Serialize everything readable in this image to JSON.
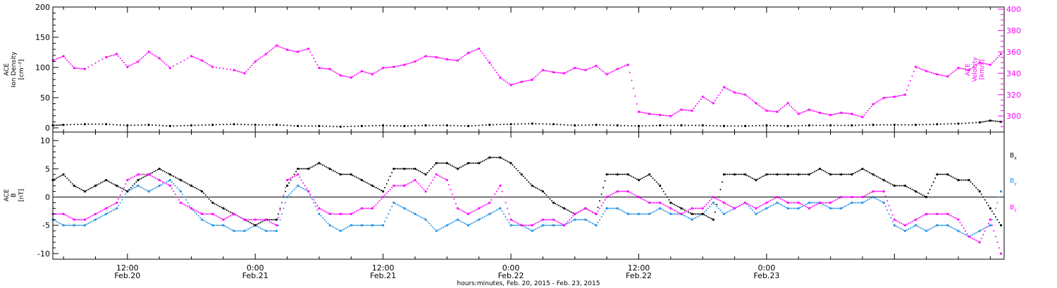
{
  "colors": {
    "black": "#000000",
    "magenta": "#ff00ff",
    "blue": "#1e90e6",
    "axis": "#000000"
  },
  "chart_data": [
    {
      "type": "scatter",
      "panel": "top",
      "left_axis": {
        "label_lines": [
          "ACE",
          "Ion Density",
          "[cm⁻³]"
        ],
        "ylim": [
          -7,
          200
        ],
        "ticks": [
          0,
          50,
          100,
          150,
          200
        ],
        "color": "#000000"
      },
      "right_axis": {
        "label_lines": [
          "ACE",
          "Velocity",
          "[km/s]"
        ],
        "ylim": [
          285,
          402
        ],
        "ticks": [
          300,
          320,
          340,
          360,
          380,
          400
        ],
        "color": "#ff00ff"
      },
      "x_unit": "hours since 2015-02-20 00:00",
      "xlim": [
        5,
        94.3
      ],
      "series": [
        {
          "name": "",
          "axis": "left",
          "color": "#000000",
          "x": [
            5,
            6,
            8,
            10,
            12,
            14,
            16,
            18,
            20,
            22,
            24,
            26,
            28,
            30,
            32,
            34,
            36,
            38,
            40,
            42,
            44,
            46,
            48,
            50,
            52,
            54,
            56,
            58,
            60,
            62,
            64,
            66,
            68,
            70,
            72,
            74,
            76,
            78,
            80,
            82,
            84,
            86,
            88,
            90,
            92,
            93,
            94
          ],
          "y": [
            4,
            5,
            6,
            6,
            4,
            5,
            3,
            4,
            5,
            6,
            5,
            5,
            3,
            3,
            2,
            3,
            4,
            3,
            4,
            4,
            3,
            5,
            6,
            7,
            6,
            4,
            5,
            4,
            3,
            4,
            4,
            4,
            3,
            3,
            4,
            3,
            4,
            4,
            4,
            5,
            5,
            5,
            6,
            7,
            9,
            12,
            10
          ]
        },
        {
          "name": "",
          "axis": "right",
          "color": "#ff00ff",
          "x": [
            5,
            6,
            7,
            8,
            10,
            11,
            12,
            13,
            14,
            15,
            16,
            18,
            19,
            20,
            22,
            23,
            24,
            25,
            26,
            27,
            28,
            29,
            30,
            31,
            32,
            33,
            34,
            35,
            36,
            37,
            38,
            39,
            40,
            41,
            42,
            43,
            44,
            45,
            46,
            47,
            48,
            49,
            50,
            51,
            52,
            53,
            54,
            55,
            56,
            57,
            58,
            59,
            60,
            61,
            62,
            63,
            64,
            65,
            66,
            67,
            68,
            69,
            70,
            71,
            72,
            73,
            74,
            75,
            76,
            77,
            78,
            79,
            80,
            81,
            82,
            83,
            84,
            85,
            86,
            87,
            88,
            89,
            90,
            91,
            92,
            93,
            94
          ],
          "y": [
            352,
            356,
            345,
            344,
            355,
            358,
            346,
            351,
            360,
            354,
            345,
            356,
            352,
            346,
            343,
            340,
            351,
            358,
            366,
            362,
            360,
            363,
            345,
            344,
            338,
            336,
            342,
            339,
            345,
            346,
            348,
            351,
            356,
            355,
            353,
            352,
            359,
            363,
            350,
            336,
            329,
            332,
            334,
            343,
            341,
            340,
            345,
            343,
            347,
            339,
            344,
            348,
            304,
            302,
            301,
            300,
            306,
            305,
            318,
            312,
            327,
            322,
            320,
            312,
            305,
            304,
            312,
            302,
            306,
            303,
            301,
            303,
            302,
            299,
            311,
            317,
            318,
            320,
            346,
            342,
            339,
            337,
            345,
            343,
            350,
            348,
            358
          ]
        }
      ]
    },
    {
      "type": "scatter",
      "panel": "bottom",
      "left_axis": {
        "label_lines": [
          "ACE",
          "B",
          "[nT]"
        ],
        "ylim": [
          -11,
          11.5
        ],
        "ticks": [
          -10,
          -5,
          0,
          5,
          10
        ],
        "color": "#000000"
      },
      "zero_line": true,
      "x_unit": "hours since 2015-02-20 00:00",
      "xlim": [
        5,
        94.3
      ],
      "series": [
        {
          "name": "Bx",
          "name_base": "B",
          "name_sub": "x",
          "color": "#000000",
          "x": [
            5,
            6,
            7,
            8,
            9,
            10,
            11,
            12,
            13,
            14,
            15,
            16,
            17,
            18,
            19,
            20,
            21,
            22,
            23,
            24,
            25,
            26,
            27,
            28,
            29,
            30,
            31,
            32,
            33,
            34,
            35,
            36,
            37,
            38,
            39,
            40,
            41,
            42,
            43,
            44,
            45,
            46,
            47,
            48,
            49,
            50,
            51,
            52,
            53,
            54,
            55,
            56,
            57,
            58,
            59,
            60,
            61,
            62,
            63,
            64,
            65,
            66,
            67,
            68,
            69,
            70,
            71,
            72,
            73,
            74,
            75,
            76,
            77,
            78,
            79,
            80,
            81,
            82,
            83,
            84,
            85,
            86,
            87,
            88,
            89,
            90,
            91,
            92,
            93,
            94
          ],
          "y": [
            3,
            4,
            2,
            1,
            2,
            3,
            2,
            1,
            3,
            4,
            5,
            4,
            3,
            2,
            1,
            -1,
            -2,
            -3,
            -4,
            -5,
            -4,
            -4,
            2,
            5,
            5,
            6,
            5,
            4,
            4,
            3,
            2,
            1,
            5,
            5,
            5,
            4,
            6,
            6,
            5,
            6,
            6,
            7,
            7,
            6,
            4,
            2,
            1,
            -1,
            -2,
            -3,
            -2,
            -3,
            4,
            4,
            4,
            3,
            4,
            2,
            -1,
            -2,
            -3,
            -3,
            -4,
            4,
            4,
            4,
            3,
            4,
            4,
            4,
            4,
            4,
            5,
            4,
            4,
            4,
            5,
            4,
            3,
            2,
            2,
            1,
            0,
            4,
            4,
            3,
            3,
            1,
            -2,
            -5
          ]
        },
        {
          "name": "By",
          "name_base": "B",
          "name_sub": "y",
          "color": "#1e90e6",
          "x": [
            5,
            6,
            7,
            8,
            9,
            10,
            11,
            12,
            13,
            14,
            15,
            16,
            17,
            18,
            19,
            20,
            21,
            22,
            23,
            24,
            25,
            26,
            27,
            28,
            29,
            30,
            31,
            32,
            33,
            34,
            35,
            36,
            37,
            38,
            39,
            40,
            41,
            42,
            43,
            44,
            45,
            46,
            47,
            48,
            49,
            50,
            51,
            52,
            53,
            54,
            55,
            56,
            57,
            58,
            59,
            60,
            61,
            62,
            63,
            64,
            65,
            66,
            67,
            68,
            69,
            70,
            71,
            72,
            73,
            74,
            75,
            76,
            77,
            78,
            79,
            80,
            81,
            82,
            83,
            84,
            85,
            86,
            87,
            88,
            89,
            90,
            91,
            92,
            93,
            94
          ],
          "y": [
            -4,
            -5,
            -5,
            -5,
            -4,
            -3,
            -2,
            1,
            2,
            1,
            2,
            3,
            1,
            -2,
            -4,
            -5,
            -5,
            -6,
            -6,
            -5,
            -6,
            -6,
            0,
            2,
            1,
            -3,
            -5,
            -6,
            -5,
            -5,
            -5,
            -5,
            -1,
            -2,
            -3,
            -4,
            -6,
            -5,
            -4,
            -5,
            -4,
            -3,
            -2,
            -5,
            -5,
            -6,
            -5,
            -5,
            -5,
            -4,
            -4,
            -5,
            -2,
            -2,
            -3,
            -3,
            -3,
            -2,
            -3,
            -3,
            -4,
            -3,
            -1,
            -3,
            -2,
            -1,
            -3,
            -2,
            -1,
            -2,
            -2,
            -1,
            -1,
            -2,
            -2,
            -1,
            -1,
            0,
            -1,
            -5,
            -6,
            -5,
            -6,
            -5,
            -5,
            -6,
            -7,
            -6,
            -5,
            1
          ]
        },
        {
          "name": "Bz",
          "name_base": "B",
          "name_sub": "z",
          "color": "#ff00ff",
          "x": [
            5,
            6,
            7,
            8,
            9,
            10,
            11,
            12,
            13,
            14,
            15,
            16,
            17,
            18,
            19,
            20,
            21,
            22,
            23,
            24,
            25,
            26,
            27,
            28,
            29,
            30,
            31,
            32,
            33,
            34,
            35,
            36,
            37,
            38,
            39,
            40,
            41,
            42,
            43,
            44,
            45,
            46,
            47,
            48,
            49,
            50,
            51,
            52,
            53,
            54,
            55,
            56,
            57,
            58,
            59,
            60,
            61,
            62,
            63,
            64,
            65,
            66,
            67,
            68,
            69,
            70,
            71,
            72,
            73,
            74,
            75,
            76,
            77,
            78,
            79,
            80,
            81,
            82,
            83,
            84,
            85,
            86,
            87,
            88,
            89,
            90,
            91,
            92,
            93,
            94
          ],
          "y": [
            -3,
            -3,
            -4,
            -4,
            -3,
            -2,
            -1,
            3,
            4,
            4,
            3,
            2,
            -1,
            -2,
            -3,
            -3,
            -4,
            -3,
            -4,
            -4,
            -4,
            -5,
            3,
            4,
            1,
            -2,
            -3,
            -3,
            -3,
            -2,
            -2,
            0,
            2,
            2,
            3,
            1,
            4,
            3,
            -2,
            -3,
            -2,
            -1,
            2,
            -4,
            -5,
            -5,
            -4,
            -4,
            -5,
            -3,
            -2,
            -3,
            0,
            1,
            1,
            0,
            -1,
            -1,
            -2,
            -3,
            -2,
            -2,
            0,
            -1,
            -2,
            -1,
            -2,
            -1,
            0,
            -1,
            -1,
            -2,
            -1,
            -1,
            0,
            0,
            0,
            1,
            1,
            -4,
            -5,
            -4,
            -3,
            -3,
            -3,
            -4,
            -7,
            -8,
            -4,
            -10
          ]
        }
      ],
      "legend_placement": "right"
    }
  ],
  "x_axis": {
    "ticks": [
      {
        "hours": 12,
        "time": "12:00",
        "date": "Feb.20"
      },
      {
        "hours": 24,
        "time": "0:00",
        "date": "Feb.21"
      },
      {
        "hours": 36,
        "time": "12:00",
        "date": "Feb.21"
      },
      {
        "hours": 48,
        "time": "0:00",
        "date": "Feb.22"
      },
      {
        "hours": 60,
        "time": "12:00",
        "date": "Feb.22"
      },
      {
        "hours": 72,
        "time": "0:00",
        "date": "Feb.23"
      }
    ],
    "title": "hours:minutes, Feb. 20, 2015 - Feb. 23, 2015"
  }
}
